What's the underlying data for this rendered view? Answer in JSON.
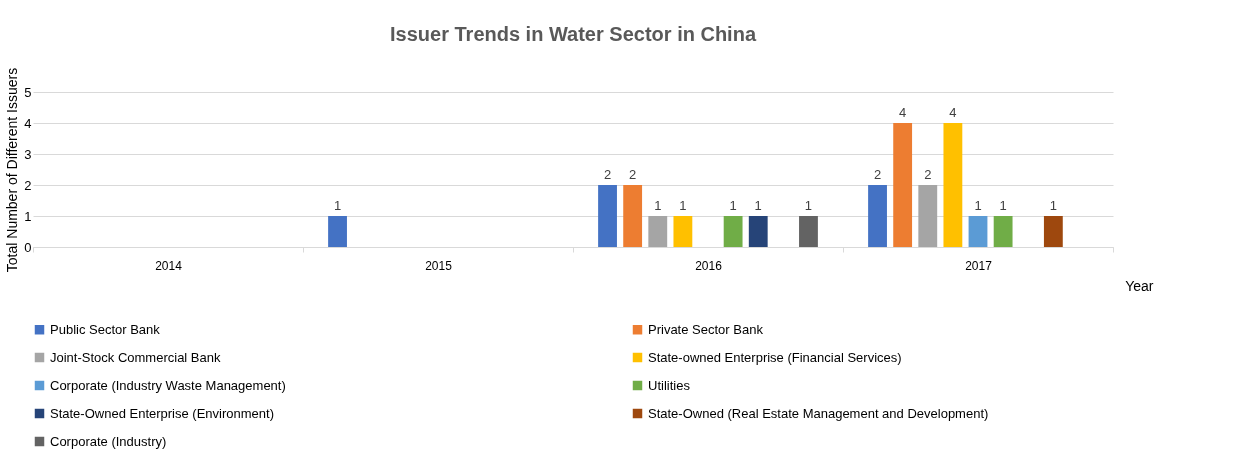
{
  "chart_data": {
    "type": "bar",
    "title": "Issuer Trends in Water Sector in China",
    "xlabel": "Year",
    "ylabel": "Total Number of Different Issuers",
    "categories": [
      "2014",
      "2015",
      "2016",
      "2017"
    ],
    "series": [
      {
        "name": "Public Sector Bank",
        "color": "#4472c4",
        "values": [
          null,
          1,
          2,
          2
        ]
      },
      {
        "name": "Private Sector Bank",
        "color": "#ed7d31",
        "values": [
          null,
          null,
          2,
          4
        ]
      },
      {
        "name": "Joint-Stock Commercial Bank",
        "color": "#a5a5a5",
        "values": [
          null,
          null,
          1,
          2
        ]
      },
      {
        "name": "State-owned Enterprise (Financial Services)",
        "color": "#ffc000",
        "values": [
          null,
          null,
          1,
          4
        ]
      },
      {
        "name": "Corporate (Industry Waste Management)",
        "color": "#5b9bd5",
        "values": [
          null,
          null,
          null,
          1
        ]
      },
      {
        "name": "Utilities",
        "color": "#70ad47",
        "values": [
          null,
          null,
          1,
          1
        ]
      },
      {
        "name": "State-Owned Enterprise (Environment)",
        "color": "#264478",
        "values": [
          null,
          null,
          1,
          null
        ]
      },
      {
        "name": "State-Owned (Real Estate Management and Development)",
        "color": "#9e480e",
        "values": [
          null,
          null,
          null,
          1
        ]
      },
      {
        "name": "Corporate (Industry)",
        "color": "#636363",
        "values": [
          null,
          null,
          1,
          null
        ]
      }
    ],
    "ylim": [
      0,
      5
    ],
    "yticks": [
      0,
      1,
      2,
      3,
      4,
      5
    ],
    "grid": "y",
    "legend": "bottom",
    "data_labels": true
  }
}
